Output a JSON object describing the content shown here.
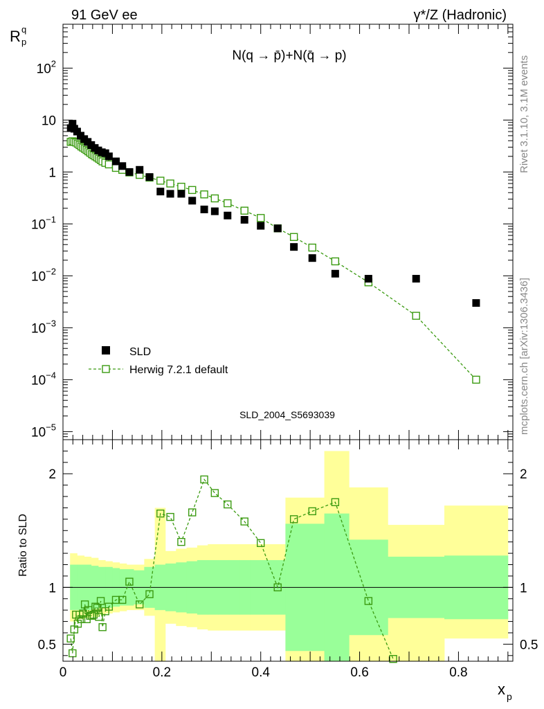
{
  "header": {
    "left": "91 GeV ee",
    "right": "γ*/Z (Hadronic)"
  },
  "side_labels": {
    "rivet": "Rivet 3.1.10,  3.1M events",
    "mcplots": "mcplots.cern.ch [arXiv:1306.3436]"
  },
  "colors": {
    "data": "#000000",
    "mc": "#3a9a10",
    "band_inner": "#99ff99",
    "band_outer": "#ffff99",
    "watermark": "#999999"
  },
  "chart_data": [
    {
      "type": "scatter",
      "panel": "main",
      "title": "N(q → p̄)+N(q̄ → p)",
      "watermark": "SLD_2004_S5693039",
      "ylabel_main": "R",
      "ylabel_super": "q",
      "ylabel_sub": "p",
      "yscale": "log",
      "xlim": [
        0,
        0.91
      ],
      "ylim": [
        7e-06,
        700
      ],
      "y_ticks": [
        {
          "value": 1e-05,
          "mantissa": "10",
          "exp": "−5"
        },
        {
          "value": 0.0001,
          "mantissa": "10",
          "exp": "−4"
        },
        {
          "value": 0.001,
          "mantissa": "10",
          "exp": "−3"
        },
        {
          "value": 0.01,
          "mantissa": "10",
          "exp": "−2"
        },
        {
          "value": 0.1,
          "mantissa": "10",
          "exp": "−1"
        },
        {
          "value": 1,
          "mantissa": "1",
          "exp": ""
        },
        {
          "value": 10,
          "mantissa": "10",
          "exp": ""
        },
        {
          "value": 100,
          "mantissa": "10",
          "exp": "2"
        }
      ],
      "legend": {
        "placement": "lower-left",
        "entries": [
          "SLD",
          "Herwig 7.2.1 default"
        ]
      },
      "series": [
        {
          "name": "SLD",
          "x": [
            0.0157,
            0.0193,
            0.0229,
            0.0286,
            0.0357,
            0.0429,
            0.05,
            0.0571,
            0.0643,
            0.0714,
            0.0786,
            0.0857,
            0.0929,
            0.1071,
            0.12,
            0.1343,
            0.155,
            0.175,
            0.1971,
            0.2171,
            0.2393,
            0.2614,
            0.2857,
            0.3071,
            0.3329,
            0.3671,
            0.4,
            0.4343,
            0.4671,
            0.5043,
            0.5507,
            0.6179,
            0.7143,
            0.8357
          ],
          "y": [
            7.0,
            8.5,
            6.8,
            6.0,
            5.0,
            4.3,
            3.8,
            3.3,
            2.9,
            2.6,
            2.4,
            2.3,
            2.0,
            1.6,
            1.3,
            1.0,
            1.1,
            0.8,
            0.42,
            0.38,
            0.38,
            0.28,
            0.19,
            0.175,
            0.145,
            0.12,
            0.092,
            0.082,
            0.036,
            0.022,
            0.011,
            0.0088,
            0.0088,
            0.003
          ]
        },
        {
          "name": "Herwig 7.2.1 default",
          "style": "dashed-line-open-square",
          "x": [
            0.0157,
            0.0193,
            0.0229,
            0.0264,
            0.03,
            0.0336,
            0.0371,
            0.0407,
            0.0443,
            0.0479,
            0.0514,
            0.055,
            0.0586,
            0.0621,
            0.0657,
            0.0693,
            0.0729,
            0.0764,
            0.08,
            0.0857,
            0.0929,
            0.1071,
            0.12,
            0.1343,
            0.155,
            0.175,
            0.1971,
            0.2171,
            0.2393,
            0.2614,
            0.2857,
            0.3071,
            0.3329,
            0.3671,
            0.4,
            0.4343,
            0.4671,
            0.5043,
            0.5507,
            0.6179,
            0.7143,
            0.8357
          ],
          "y": [
            3.8,
            3.9,
            3.8,
            3.7,
            3.5,
            3.3,
            3.1,
            2.95,
            2.8,
            2.65,
            2.5,
            2.35,
            2.2,
            2.1,
            2.0,
            1.9,
            1.8,
            1.7,
            1.6,
            1.5,
            1.4,
            1.2,
            1.1,
            0.98,
            0.88,
            0.78,
            0.68,
            0.6,
            0.52,
            0.45,
            0.37,
            0.31,
            0.25,
            0.18,
            0.13,
            0.082,
            0.056,
            0.035,
            0.019,
            0.0075,
            0.0017,
            0.0001
          ]
        }
      ]
    },
    {
      "type": "scatter",
      "panel": "ratio",
      "ylabel": "Ratio to SLD",
      "xlabel": "x",
      "xlabel_sub": "p",
      "xlim": [
        0,
        0.91
      ],
      "ylim": [
        0.35,
        2.3
      ],
      "x_ticks": [
        0,
        0.2,
        0.4,
        0.6,
        0.8
      ],
      "x_tick_labels": [
        "0",
        "0.2",
        "0.4",
        "0.6",
        "0.8"
      ],
      "y_ticks": [
        0.5,
        1,
        2
      ],
      "y_tick_labels": [
        "0.5",
        "1",
        "2"
      ],
      "reference_line": 1,
      "uncertainty_bands": {
        "edges": [
          0.0143,
          0.0286,
          0.0429,
          0.0571,
          0.0714,
          0.0857,
          0.1,
          0.1143,
          0.1286,
          0.1429,
          0.1643,
          0.1857,
          0.2071,
          0.2286,
          0.25,
          0.2714,
          0.2929,
          0.3143,
          0.3357,
          0.3571,
          0.3786,
          0.4071,
          0.45,
          0.5286,
          0.5786,
          0.6571,
          0.7714,
          0.9
        ],
        "inner_low": [
          0.8,
          0.8,
          0.8,
          0.81,
          0.82,
          0.82,
          0.83,
          0.84,
          0.84,
          0.85,
          0.82,
          0.8,
          0.79,
          0.78,
          0.77,
          0.76,
          0.76,
          0.76,
          0.76,
          0.76,
          0.76,
          0.76,
          0.44,
          0.35,
          0.58,
          0.73,
          0.72
        ],
        "inner_high": [
          1.2,
          1.2,
          1.2,
          1.19,
          1.18,
          1.18,
          1.17,
          1.16,
          1.16,
          1.15,
          1.18,
          1.2,
          1.21,
          1.22,
          1.23,
          1.24,
          1.24,
          1.24,
          1.24,
          1.24,
          1.24,
          1.24,
          1.56,
          1.65,
          1.42,
          1.27,
          1.28
        ],
        "outer_low": [
          0.7,
          0.72,
          0.73,
          0.74,
          0.76,
          0.77,
          0.78,
          0.79,
          0.8,
          0.8,
          0.75,
          0.35,
          0.68,
          0.66,
          0.65,
          0.63,
          0.62,
          0.62,
          0.62,
          0.62,
          0.62,
          0.62,
          0.35,
          0.35,
          0.35,
          0.35,
          0.55
        ],
        "outer_high": [
          1.3,
          1.28,
          1.27,
          1.26,
          1.24,
          1.23,
          1.22,
          1.21,
          1.2,
          1.2,
          1.25,
          1.7,
          1.32,
          1.34,
          1.35,
          1.37,
          1.38,
          1.38,
          1.38,
          1.38,
          1.38,
          1.38,
          1.79,
          2.2,
          1.88,
          1.55,
          1.72
        ]
      },
      "series": [
        {
          "name": "Herwig 7.2.1 default",
          "style": "dashed-line-open-square",
          "x": [
            0.0157,
            0.0193,
            0.0229,
            0.0264,
            0.03,
            0.0336,
            0.0371,
            0.0407,
            0.0443,
            0.0479,
            0.0514,
            0.055,
            0.0586,
            0.0621,
            0.0657,
            0.0693,
            0.0729,
            0.0764,
            0.08,
            0.0857,
            0.0929,
            0.1071,
            0.12,
            0.1343,
            0.155,
            0.175,
            0.1971,
            0.2171,
            0.2393,
            0.2614,
            0.2857,
            0.3071,
            0.3329,
            0.3671,
            0.4,
            0.4343,
            0.4671,
            0.5043,
            0.5507,
            0.6179,
            0.6679
          ],
          "y": [
            0.55,
            0.42,
            0.63,
            0.76,
            0.68,
            0.76,
            0.72,
            0.77,
            0.85,
            0.72,
            0.8,
            0.75,
            0.75,
            0.76,
            0.83,
            0.82,
            0.74,
            0.88,
            0.65,
            0.79,
            0.83,
            0.89,
            0.89,
            1.05,
            0.85,
            0.94,
            1.65,
            1.62,
            1.4,
            1.66,
            1.95,
            1.83,
            1.73,
            1.58,
            1.39,
            1.0,
            1.6,
            1.67,
            1.75,
            0.88,
            0.37
          ]
        }
      ]
    }
  ]
}
